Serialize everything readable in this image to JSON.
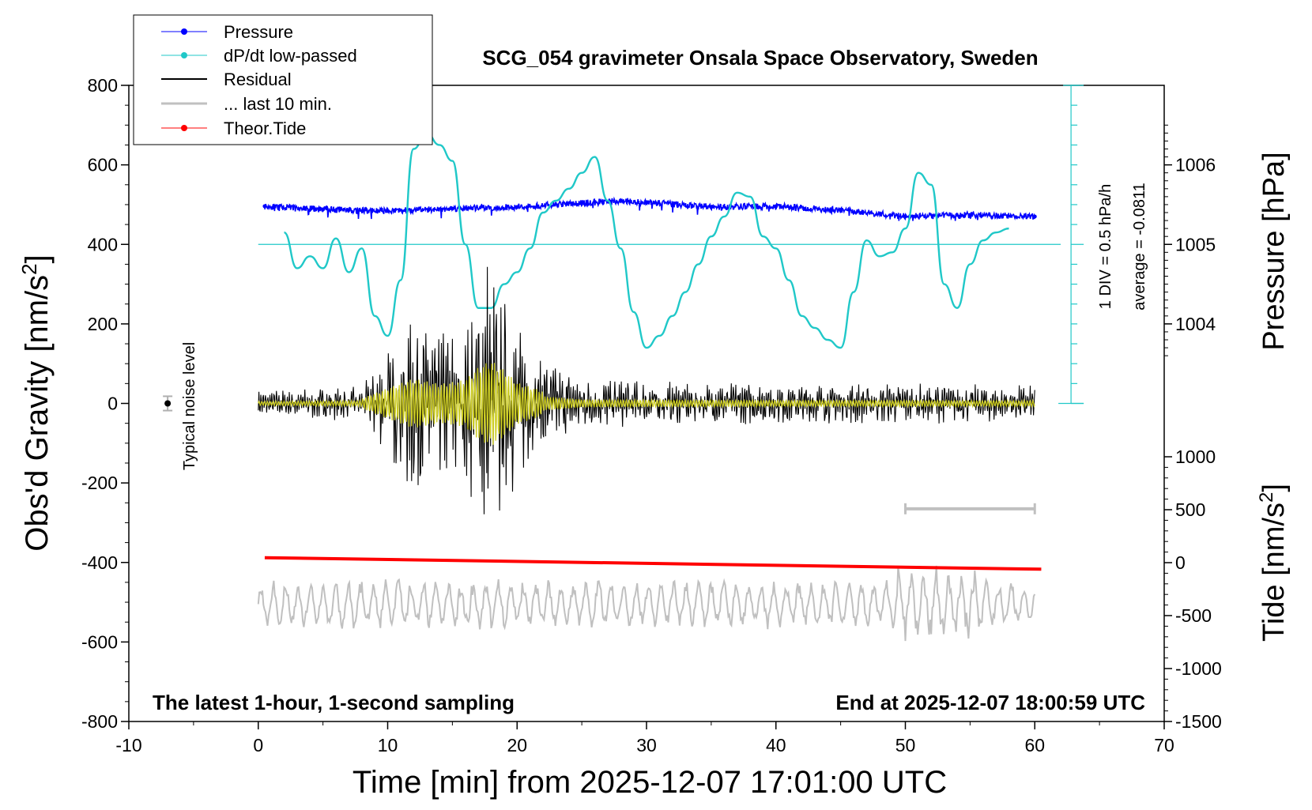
{
  "chart_data": {
    "type": "line",
    "title": "SCG_054 gravimeter Onsala Space Observatory, Sweden",
    "xlabel": "Time [min] from 2025-12-07 17:01:00 UTC",
    "ylabel_left": "Obs'd Gravity [nm/s",
    "ylabel_left_sup": "2",
    "ylabel_left_close": "]",
    "ylabel_pressure": "Pressure [hPa]",
    "ylabel_tide": "Tide [nm/s",
    "ylabel_tide_sup": "2",
    "ylabel_tide_close": "]",
    "xlim": [
      -10,
      70
    ],
    "ylim": [
      -800,
      800
    ],
    "x_ticks": [
      "-10",
      "0",
      "10",
      "20",
      "30",
      "40",
      "50",
      "60",
      "70"
    ],
    "y_ticks": [
      "800",
      "600",
      "400",
      "200",
      "0",
      "-200",
      "-400",
      "-600",
      "-800"
    ],
    "pressure_ticks": [
      "1006",
      "1005",
      "1004"
    ],
    "pressure_tick_values": [
      1006,
      1005,
      1004
    ],
    "tide_ticks": [
      "1000",
      "500",
      "0",
      "-500",
      "-1000",
      "-1500"
    ],
    "tide_tick_values": [
      1000,
      500,
      0,
      -500,
      -1000,
      -1500
    ],
    "tide_range": [
      -1500,
      1000
    ],
    "legend": {
      "position": "top-left",
      "entries": [
        {
          "label": "Pressure",
          "color": "#0000ff",
          "marker": true
        },
        {
          "label": "dP/dt low-passed",
          "color": "#20c8c8",
          "marker": true
        },
        {
          "label": "Residual",
          "color": "#000000",
          "marker": false
        },
        {
          "label": "... last 10 min.",
          "color": "#c0c0c0",
          "marker": false
        },
        {
          "label": "Theor.Tide",
          "color": "#ff0000",
          "marker": true
        }
      ]
    },
    "annotations": {
      "noise_label": "Typical noise level",
      "div_label": "1 DIV = 0.5 hPa/h",
      "average_label": "average = -0.0811",
      "bottom_left": "The latest 1-hour, 1-second sampling",
      "bottom_right": "End at 2025-12-07 18:00:59 UTC"
    },
    "series": [
      {
        "name": "Pressure",
        "color": "#0000ff",
        "x": [
          0.5,
          5,
          10,
          15,
          20,
          25,
          28,
          30,
          35,
          40,
          45,
          50,
          55,
          60
        ],
        "y": [
          1005.48,
          1005.44,
          1005.42,
          1005.45,
          1005.47,
          1005.52,
          1005.55,
          1005.53,
          1005.47,
          1005.48,
          1005.43,
          1005.35,
          1005.37,
          1005.35
        ]
      },
      {
        "name": "dP/dt low-passed",
        "color": "#20c8c8",
        "x": [
          2,
          3,
          4,
          5,
          6,
          7,
          8,
          9,
          10,
          11,
          12,
          13,
          14,
          15,
          16,
          17,
          18,
          19,
          20,
          21,
          22,
          23,
          24,
          25,
          26,
          27,
          28,
          29,
          30,
          31,
          32,
          33,
          34,
          35,
          36,
          37,
          38,
          39,
          40,
          41,
          42,
          43,
          44,
          45,
          46,
          47,
          48,
          49,
          50,
          51,
          52,
          53,
          54,
          55,
          56,
          57,
          58
        ],
        "y": [
          430,
          340,
          370,
          340,
          415,
          330,
          390,
          220,
          170,
          310,
          640,
          680,
          650,
          610,
          400,
          240,
          240,
          300,
          330,
          390,
          480,
          510,
          540,
          580,
          620,
          510,
          390,
          230,
          140,
          170,
          220,
          280,
          350,
          420,
          470,
          530,
          520,
          420,
          390,
          310,
          220,
          190,
          160,
          140,
          280,
          410,
          370,
          380,
          440,
          580,
          550,
          300,
          240,
          350,
          410,
          430,
          440
        ]
      },
      {
        "name": "Residual",
        "color": "#000000",
        "envelope_x": [
          0,
          8,
          10,
          12,
          14,
          16,
          17,
          18,
          19,
          20,
          22,
          25,
          30,
          40,
          50,
          60
        ],
        "envelope_amplitude": [
          25,
          35,
          110,
          180,
          140,
          170,
          260,
          310,
          240,
          150,
          90,
          50,
          45,
          40,
          40,
          35
        ]
      },
      {
        "name": "... last 10 min.",
        "color": "#c0c0c0",
        "x_range": [
          0,
          60
        ],
        "center": -505,
        "amplitude_range": [
          25,
          80
        ]
      },
      {
        "name": "Theor.Tide",
        "color": "#ff0000",
        "x": [
          0.5,
          60.5
        ],
        "y": [
          -388,
          -417
        ]
      }
    ],
    "scale_bar": {
      "x_range": [
        50,
        60
      ],
      "color": "#c0c0c0"
    },
    "noise_marker": {
      "x": -7,
      "y": 0,
      "error": 18
    },
    "zero_line_pressure_hpa": 1005
  }
}
